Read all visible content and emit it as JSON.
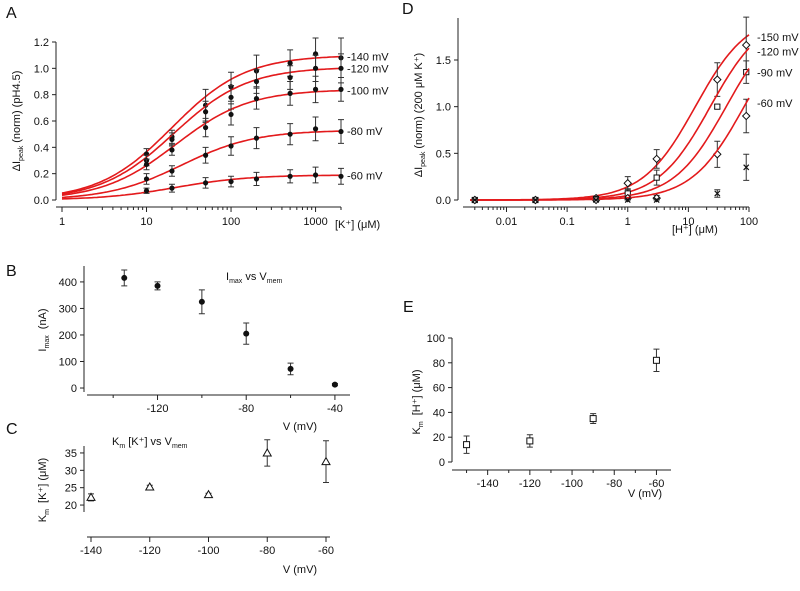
{
  "colors": {
    "fit": "#e31a1c",
    "axis": "#222222",
    "data": "#111111",
    "errorbar": "#333333"
  },
  "chart_data": [
    {
      "panel": "A",
      "type": "scatter",
      "xscale": "log",
      "xlabel": "[K⁺] (μM)",
      "ylabel": "ΔI",
      "ylabel_sub": "peak",
      "ylabel_tail": "(norm)  (pH4.5)",
      "xlim": [
        1,
        2000
      ],
      "ylim": [
        0,
        1.2
      ],
      "xticks": [
        1,
        10,
        100,
        1000
      ],
      "xtick_labels": [
        "1",
        "10",
        "100",
        "1000"
      ],
      "yticks": [
        0,
        0.2,
        0.4,
        0.6,
        0.8,
        1.0,
        1.2
      ],
      "ytick_labels": [
        "0.0",
        "0.2",
        "0.4",
        "0.6",
        "0.8",
        "1.0",
        "1.2"
      ],
      "marker": "circle-filled",
      "x": [
        10,
        20,
        50,
        100,
        200,
        500,
        1000,
        2000
      ],
      "series": [
        {
          "name": "-140 mV",
          "max": 1.1,
          "km": 20,
          "values": [
            0.35,
            0.48,
            0.72,
            0.86,
            0.98,
            1.04,
            1.11,
            1.08
          ],
          "errors": [
            0.04,
            0.05,
            0.12,
            0.11,
            0.12,
            0.1,
            0.12,
            0.15
          ]
        },
        {
          "name": "-120 mV",
          "max": 1.01,
          "km": 21,
          "values": [
            0.3,
            0.46,
            0.67,
            0.78,
            0.9,
            0.93,
            1.0,
            1.0
          ],
          "errors": [
            0.04,
            0.05,
            0.08,
            0.09,
            0.09,
            0.09,
            0.1,
            0.11
          ]
        },
        {
          "name": "-100 mV",
          "max": 0.84,
          "km": 22,
          "values": [
            0.27,
            0.38,
            0.55,
            0.65,
            0.77,
            0.81,
            0.84,
            0.84
          ],
          "errors": [
            0.04,
            0.04,
            0.07,
            0.08,
            0.08,
            0.09,
            0.1,
            0.09
          ]
        },
        {
          "name": "-80 mV",
          "max": 0.53,
          "km": 26,
          "values": [
            0.16,
            0.22,
            0.34,
            0.41,
            0.47,
            0.5,
            0.54,
            0.52
          ],
          "errors": [
            0.04,
            0.04,
            0.06,
            0.07,
            0.08,
            0.08,
            0.09,
            0.09
          ]
        },
        {
          "name": "-60 mV",
          "max": 0.19,
          "km": 22,
          "values": [
            0.07,
            0.09,
            0.13,
            0.14,
            0.16,
            0.18,
            0.19,
            0.18
          ],
          "errors": [
            0.02,
            0.03,
            0.04,
            0.04,
            0.05,
            0.05,
            0.06,
            0.06
          ]
        }
      ]
    },
    {
      "panel": "D",
      "type": "scatter",
      "xscale": "log",
      "xlabel": "[H⁺] (μM)",
      "ylabel": "ΔI",
      "ylabel_sub": "peak",
      "ylabel_tail": "(norm) (200 μM K⁺)",
      "xlim": [
        0.0025,
        100
      ],
      "ylim": [
        0,
        1.95
      ],
      "xticks": [
        0.01,
        0.1,
        1,
        10,
        100
      ],
      "xtick_labels": [
        "0.01",
        "0.1",
        "1",
        "10",
        "100"
      ],
      "yticks": [
        0,
        0.5,
        1.0,
        1.5
      ],
      "ytick_labels": [
        "0.0",
        "0.5",
        "1.0",
        "1.5"
      ],
      "x": [
        0.003,
        0.03,
        0.3,
        1,
        3,
        30,
        90
      ],
      "series": [
        {
          "name": "-150 mV",
          "marker": "diamond",
          "max": 2.0,
          "km": 13,
          "values": [
            0.0,
            0.0,
            0.02,
            0.18,
            0.44,
            1.29,
            1.66
          ],
          "errors": [
            0.01,
            0.01,
            0.02,
            0.07,
            0.1,
            0.18,
            0.3
          ]
        },
        {
          "name": "-120 mV",
          "marker": "square",
          "max": 2.0,
          "km": 23,
          "values": [
            0.0,
            0.0,
            0.01,
            0.07,
            0.24,
            1.0,
            1.37
          ],
          "errors": [
            0.01,
            0.01,
            0.02,
            0.05,
            0.08,
            0.02,
            0.12
          ]
        },
        {
          "name": "-90 mV",
          "marker": "diamond",
          "max": 2.0,
          "km": 42,
          "values": [
            0.0,
            0.0,
            0.0,
            0.02,
            0.02,
            0.49,
            0.9
          ],
          "errors": [
            0.01,
            0.01,
            0.01,
            0.02,
            0.03,
            0.14,
            0.18
          ]
        },
        {
          "name": "-60 mV",
          "marker": "cross",
          "max": 2.0,
          "km": 83,
          "values": [
            0.0,
            0.0,
            0.0,
            0.0,
            0.0,
            0.07,
            0.35
          ],
          "errors": [
            0.01,
            0.01,
            0.01,
            0.01,
            0.01,
            0.04,
            0.14
          ]
        }
      ]
    },
    {
      "panel": "B",
      "type": "scatter",
      "title_main": "I",
      "title_sub": "max",
      "title_mid": " vs V",
      "title_sub2": "mem",
      "xlabel": "V (mV)",
      "ylabel": "I",
      "ylabel_sub": "max",
      "ylabel_tail": " (nA)",
      "xlim": [
        -150,
        -35
      ],
      "ylim": [
        -15,
        460
      ],
      "xticks": [
        -120,
        -80,
        -40
      ],
      "xtick_labels": [
        "-120",
        "-80",
        "-40"
      ],
      "yticks": [
        0,
        100,
        200,
        300,
        400
      ],
      "ytick_labels": [
        "0",
        "100",
        "200",
        "300",
        "400"
      ],
      "marker": "circle-filled",
      "x": [
        -135,
        -120,
        -100,
        -80,
        -60,
        -40
      ],
      "values": [
        415,
        385,
        325,
        205,
        72,
        13
      ],
      "errors": [
        30,
        15,
        45,
        40,
        22,
        4
      ]
    },
    {
      "panel": "C",
      "type": "scatter",
      "title_main": "K",
      "title_sub": "m",
      "title_mid": " [K⁺] vs V",
      "title_sub2": "mem",
      "xlabel": "V (mV)",
      "ylabel": "K",
      "ylabel_sub": "m",
      "ylabel_tail": " [K⁺] (μM)",
      "xlim": [
        -140,
        -60
      ],
      "ylim": [
        18,
        37
      ],
      "xticks": [
        -140,
        -120,
        -100,
        -80,
        -60
      ],
      "xtick_labels": [
        "-140",
        "-120",
        "-100",
        "-80",
        "-60"
      ],
      "yticks": [
        20,
        25,
        30,
        35
      ],
      "ytick_labels": [
        "20",
        "25",
        "30",
        "35"
      ],
      "marker": "triangle-open",
      "x": [
        -140,
        -120,
        -100,
        -80,
        -60
      ],
      "values": [
        22.2,
        25.2,
        23.0,
        35.0,
        32.5
      ],
      "errors": [
        1.0,
        0.5,
        0.4,
        3.8,
        6.0
      ]
    },
    {
      "panel": "E",
      "type": "scatter",
      "xlabel": "V (mV)",
      "ylabel": "K",
      "ylabel_sub": "m",
      "ylabel_tail": " [H⁺] (μM)",
      "xlim": [
        -155,
        -55
      ],
      "ylim": [
        0,
        100
      ],
      "xticks": [
        -140,
        -120,
        -100,
        -80,
        -60
      ],
      "xtick_labels": [
        "-140",
        "-120",
        "-100",
        "-80",
        "-60"
      ],
      "yticks": [
        0,
        20,
        40,
        60,
        80,
        100
      ],
      "ytick_labels": [
        "0",
        "20",
        "40",
        "60",
        "80",
        "100"
      ],
      "marker": "square-open",
      "x": [
        -150,
        -120,
        -90,
        -60
      ],
      "values": [
        14,
        17,
        35,
        82
      ],
      "errors": [
        7,
        5,
        4,
        9
      ]
    }
  ]
}
